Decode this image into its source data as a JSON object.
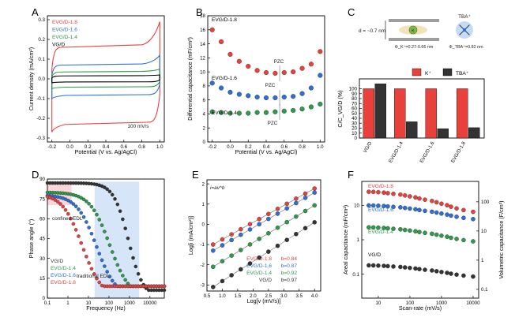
{
  "colors": {
    "red": "#e8413c",
    "blue": "#2e6fd6",
    "green": "#2e9a4a",
    "black": "#333333",
    "vgd": "#000000"
  },
  "chart_data": [
    {
      "panel": "A",
      "type": "line",
      "xlabel": "Potential (V vs. Ag/AgCl)",
      "ylabel": "Current density (mA/cm²)",
      "xlim": [
        -0.25,
        1.05
      ],
      "ylim": [
        -0.32,
        0.32
      ],
      "xticks": [
        "-0.2",
        "0.0",
        "0.2",
        "0.4",
        "0.6",
        "0.8",
        "1.0"
      ],
      "yticks": [
        "-0.3",
        "-0.2",
        "-0.1",
        "0.0",
        "0.1",
        "0.2",
        "0.3"
      ],
      "annotation": "100 mV/s",
      "series": [
        {
          "name": "EVG/D-1.8",
          "color": "red",
          "upper": 0.16,
          "lower": -0.22,
          "tip_up": 0.29,
          "tip_down": -0.27
        },
        {
          "name": "EVG/D-1.6",
          "color": "blue",
          "upper": 0.07,
          "lower": -0.08,
          "tip_up": 0.12,
          "tip_down": -0.1
        },
        {
          "name": "EVG/D-1.4",
          "color": "green",
          "upper": 0.035,
          "lower": -0.04,
          "tip_up": 0.05,
          "tip_down": -0.05
        },
        {
          "name": "VG/D",
          "color": "vgd",
          "upper": 0.015,
          "lower": -0.015,
          "tip_up": 0.02,
          "tip_down": -0.02
        }
      ]
    },
    {
      "panel": "B",
      "type": "scatter",
      "xlabel": "Potential (V vs. Ag/AgCl)",
      "ylabel": "Differential capacitance  (mF/cm²)",
      "xlim": [
        -0.25,
        1.05
      ],
      "ylim": [
        0,
        18
      ],
      "xticks": [
        "-0.2",
        "0.0",
        "0.2",
        "0.4",
        "0.6",
        "0.8",
        "1.0"
      ],
      "yticks": [
        "0",
        "2",
        "4",
        "6",
        "8",
        "10",
        "12",
        "14",
        "16",
        "18"
      ],
      "x": [
        -0.2,
        -0.1,
        0.0,
        0.1,
        0.2,
        0.3,
        0.4,
        0.5,
        0.6,
        0.7,
        0.8,
        0.9,
        1.0
      ],
      "pzc_label": "PZC",
      "series": [
        {
          "name": "EVG/D-1.8",
          "color": "red",
          "values": [
            16.0,
            14.3,
            12.5,
            11.5,
            10.8,
            10.2,
            9.9,
            9.8,
            9.9,
            10.0,
            10.5,
            11.1,
            12.9
          ]
        },
        {
          "name": "EVG/D-1.6",
          "color": "blue",
          "values": [
            8.4,
            7.7,
            7.1,
            6.8,
            6.6,
            6.4,
            6.3,
            6.3,
            6.4,
            6.5,
            6.9,
            7.7,
            9.5
          ]
        },
        {
          "name": "EVG/D-1.4",
          "color": "green",
          "values": [
            4.3,
            4.2,
            4.1,
            4.1,
            4.1,
            4.2,
            4.2,
            4.3,
            4.4,
            4.5,
            4.7,
            5.0,
            5.4
          ]
        }
      ]
    },
    {
      "panel": "C",
      "type": "bar",
      "ylabel": "C/C_VG/D (%)",
      "ylim": [
        0,
        120
      ],
      "yticks": [
        "0",
        "10",
        "20",
        "30",
        "40",
        "50",
        "60",
        "70",
        "80",
        "90",
        "100"
      ],
      "categories": [
        "VG/D",
        "EVG/D-1.4",
        "EVG/D-1.6",
        "EVG/D-1.8"
      ],
      "series": [
        {
          "name": "K⁺",
          "color": "red",
          "values": [
            100,
            100,
            100,
            100
          ]
        },
        {
          "name": "TBA⁺",
          "color": "black",
          "values": [
            110,
            33,
            19,
            21
          ]
        }
      ],
      "schematic": {
        "d_label": "d = ~0.7 nm",
        "k_label": "K",
        "phi_k": "Φ_K⁺=0.27-0.66 nm",
        "phi_tba": "Φ_TBA⁺=0.82 nm",
        "tba_label": "TBA⁺"
      }
    },
    {
      "panel": "D",
      "type": "line",
      "xlabel": "Frequency (Hz)",
      "ylabel": "Phase angle (°)",
      "xlim": [
        0.1,
        50000
      ],
      "ylim": [
        0,
        90
      ],
      "xticks": [
        "0.1",
        "1",
        "10",
        "100",
        "1000",
        "10000"
      ],
      "yticks": [
        "0",
        "15",
        "30",
        "45",
        "60",
        "75",
        "90"
      ],
      "regions": [
        "confined EDL",
        "traditional EDL"
      ],
      "legend": [
        "VG/D",
        "EVG/D-1.4",
        "EVG/D-1.6",
        "EVG/D-1.8"
      ],
      "series": [
        {
          "name": "VG/D",
          "color": "black",
          "f50": 900,
          "low": 87,
          "k": 1.2
        },
        {
          "name": "EVG/D-1.4",
          "color": "green",
          "f50": 110,
          "low": 80,
          "k": 0.9
        },
        {
          "name": "EVG/D-1.6",
          "color": "blue",
          "f50": 25,
          "low": 78,
          "k": 0.9
        },
        {
          "name": "EVG/D-1.8",
          "color": "red",
          "f50": 5,
          "low": 79,
          "k": 0.9
        }
      ]
    },
    {
      "panel": "E",
      "type": "scatter",
      "annotation": "i=av^b",
      "xlabel": "Log[v (mV/s)]",
      "ylabel": "Log[i (mA/cm²)]",
      "xlim": [
        0.5,
        4.2
      ],
      "ylim": [
        -3.3,
        2.2
      ],
      "xticks": [
        "0.5",
        "1.0",
        "1.5",
        "2.0",
        "2.5",
        "3.0",
        "3.5",
        "4.0"
      ],
      "yticks": [
        "-3",
        "-2",
        "-1",
        "0",
        "1",
        "2"
      ],
      "x": [
        0.7,
        1.0,
        1.3,
        1.6,
        1.9,
        2.2,
        2.5,
        2.8,
        3.1,
        3.4,
        3.7,
        4.0
      ],
      "series": [
        {
          "name": "EVG/D-1.8",
          "color": "red",
          "b_label": "b=0.84",
          "y0": -1.0,
          "slope": 0.84
        },
        {
          "name": "EVG/D-1.6",
          "color": "blue",
          "b_label": "b=0.87",
          "y0": -1.3,
          "slope": 0.87
        },
        {
          "name": "EVG/D-1.4",
          "color": "green",
          "b_label": "b=0.92",
          "y0": -2.1,
          "slope": 0.92
        },
        {
          "name": "VG/D",
          "color": "black",
          "b_label": "b=0.97",
          "y0": -3.1,
          "slope": 0.97
        }
      ]
    },
    {
      "panel": "F",
      "type": "scatter",
      "xlabel": "Scan-rate (mV/s)",
      "ylabel": "Areal capacitance (mF/cm²)",
      "y2label": "Volumetric capacitance (F/cm³)",
      "xlim": [
        3,
        15000
      ],
      "ylim": [
        0.02,
        50
      ],
      "xticks": [
        "10",
        "100",
        "1000",
        "10000"
      ],
      "yticks": [
        "0.1",
        "1",
        "10"
      ],
      "y2ticks": [
        "0.1",
        "1",
        "10",
        "100"
      ],
      "x": [
        5,
        7,
        10,
        15,
        20,
        30,
        50,
        70,
        100,
        150,
        200,
        300,
        500,
        700,
        1000,
        1500,
        2000,
        3000,
        5000,
        10000
      ],
      "series": [
        {
          "name": "EVG/D-1.8",
          "color": "red",
          "start": 25,
          "end": 6.5
        },
        {
          "name": "EVG/D-1.6",
          "color": "blue",
          "start": 10,
          "end": 4
        },
        {
          "name": "EVG/D-1.4",
          "color": "green",
          "start": 2.3,
          "end": 0.9
        },
        {
          "name": "VG/D",
          "color": "black",
          "start": 0.18,
          "end": 0.085
        }
      ]
    }
  ]
}
